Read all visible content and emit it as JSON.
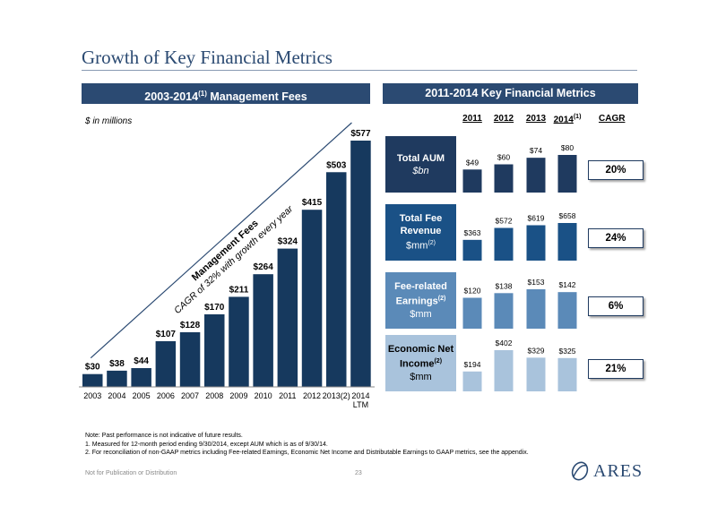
{
  "page": {
    "title": "Growth of Key Financial Metrics",
    "left_header": {
      "text": "2003-2014",
      "sup": "(1)",
      "suffix": " Management Fees"
    },
    "right_header": "2011-2014 Key Financial Metrics",
    "units": "$ in millions",
    "cagr_header": "CAGR",
    "notes": [
      "Note: Past performance is not indicative of future results.",
      "1. Measured for 12-month period ending 9/30/2014, except AUM which is as of 9/30/14.",
      "2. For reconciliation of non-GAAP metrics including Fee-related Earnings, Economic Net Income and Distributable Earnings to GAAP metrics, see the appendix."
    ],
    "footer": "Not for Publication or Distribution",
    "page_number": "23",
    "logo_text": "ARES"
  },
  "colors": {
    "navy": "#1f3a5f",
    "header_blue": "#2b4a72",
    "medium_blue": "#4d7fae",
    "light_blue": "#a9c3dc",
    "bar_blue": "#16395e"
  },
  "chart_data": [
    {
      "type": "bar",
      "categories": [
        "2003",
        "2004",
        "2005",
        "2006",
        "2007",
        "2008",
        "2009",
        "2010",
        "2011",
        "2012",
        "2013(2)",
        "2014 LTM"
      ],
      "values": [
        30,
        38,
        44,
        107,
        128,
        170,
        211,
        264,
        324,
        415,
        503,
        577
      ],
      "labels": [
        "$30",
        "$38",
        "$44",
        "$107",
        "$128",
        "$170",
        "$211",
        "$264",
        "$324",
        "$415",
        "$503",
        "$577"
      ],
      "annotation": {
        "line1": "Management Fees",
        "line2": "CAGR of 32% with growth every year"
      },
      "ylim": [
        0,
        577
      ]
    },
    {
      "type": "bar",
      "categories": [
        "2011",
        "2012",
        "2013",
        "2014"
      ],
      "category_sup": [
        "",
        "",
        "",
        "(1)"
      ],
      "metrics": [
        {
          "name": "Total AUM",
          "unit": "$bn",
          "unit_sup": "",
          "values": [
            49,
            60,
            74,
            80
          ],
          "labels": [
            "$49",
            "$60",
            "$74",
            "$80"
          ],
          "cagr": "20%",
          "color": "#1f3a5f"
        },
        {
          "name": "Total Fee Revenue",
          "unit": "$mm",
          "unit_sup": "(2)",
          "values": [
            363,
            572,
            619,
            658
          ],
          "labels": [
            "$363",
            "$572",
            "$619",
            "$658"
          ],
          "cagr": "24%",
          "color": "#1a5186"
        },
        {
          "name": "Fee-related Earnings",
          "name_sup": "(2)",
          "unit": "$mm",
          "unit_sup": "",
          "values": [
            120,
            138,
            153,
            142
          ],
          "labels": [
            "$120",
            "$138",
            "$153",
            "$142"
          ],
          "cagr": "6%",
          "color": "#5b8ab8"
        },
        {
          "name": "Economic Net Income",
          "name_sup": "(2)",
          "unit": "$mm",
          "unit_sup": "",
          "values": [
            194,
            402,
            329,
            325
          ],
          "labels": [
            "$194",
            "$402",
            "$329",
            "$325"
          ],
          "cagr": "21%",
          "color": "#a9c3dc"
        }
      ]
    }
  ]
}
